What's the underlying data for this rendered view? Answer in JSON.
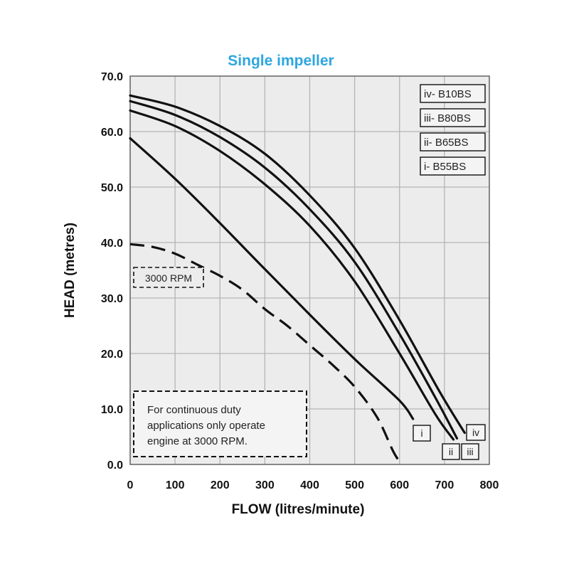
{
  "chart_data": {
    "type": "line",
    "title": "Single impeller",
    "xlabel": "FLOW (litres/minute)",
    "ylabel": "HEAD (metres)",
    "xlim": [
      0,
      800
    ],
    "ylim": [
      0,
      70
    ],
    "x_ticks": [
      "0",
      "100",
      "200",
      "300",
      "400",
      "500",
      "600",
      "700",
      "800"
    ],
    "y_ticks": [
      "0.0",
      "10.0",
      "20.0",
      "30.0",
      "40.0",
      "50.0",
      "60.0",
      "70.0"
    ],
    "grid": true,
    "legend_position": "top-right",
    "legend": [
      "iv- B10BS",
      "iii- B80BS",
      "ii- B65BS",
      "i- B55BS"
    ],
    "series": [
      {
        "name": "i- B55BS",
        "tag": "i",
        "style": "solid",
        "points": [
          [
            0,
            58.8
          ],
          [
            100,
            51.5
          ],
          [
            200,
            43.5
          ],
          [
            300,
            35.2
          ],
          [
            400,
            27
          ],
          [
            500,
            19
          ],
          [
            600,
            11.5
          ],
          [
            630,
            8.2
          ]
        ]
      },
      {
        "name": "ii- B65BS",
        "tag": "ii",
        "style": "solid",
        "points": [
          [
            0,
            63.8
          ],
          [
            100,
            61
          ],
          [
            200,
            56.5
          ],
          [
            300,
            50.5
          ],
          [
            400,
            43
          ],
          [
            500,
            33
          ],
          [
            600,
            20
          ],
          [
            680,
            9
          ],
          [
            720,
            4.5
          ]
        ]
      },
      {
        "name": "iii- B80BS",
        "tag": "iii",
        "style": "solid",
        "points": [
          [
            0,
            65.5
          ],
          [
            100,
            63
          ],
          [
            200,
            59
          ],
          [
            300,
            53.5
          ],
          [
            400,
            46
          ],
          [
            500,
            36.5
          ],
          [
            600,
            23.5
          ],
          [
            680,
            12
          ],
          [
            728,
            4.7
          ]
        ]
      },
      {
        "name": "iv- B10BS",
        "tag": "iv",
        "style": "solid",
        "points": [
          [
            0,
            66.5
          ],
          [
            100,
            64.5
          ],
          [
            200,
            61
          ],
          [
            300,
            56
          ],
          [
            400,
            48.5
          ],
          [
            500,
            39
          ],
          [
            600,
            26
          ],
          [
            690,
            13
          ],
          [
            745,
            5.7
          ]
        ]
      },
      {
        "name": "3000 RPM",
        "tag": "3000 RPM",
        "style": "dashed",
        "points": [
          [
            0,
            39.7
          ],
          [
            50,
            39.2
          ],
          [
            100,
            38
          ],
          [
            150,
            36
          ],
          [
            200,
            34
          ],
          [
            250,
            31.5
          ],
          [
            300,
            28
          ],
          [
            350,
            25
          ],
          [
            400,
            21.5
          ],
          [
            450,
            18
          ],
          [
            500,
            14
          ],
          [
            550,
            8.5
          ],
          [
            585,
            2.5
          ],
          [
            600,
            0.5
          ]
        ]
      }
    ],
    "annotation": {
      "lines": [
        "For continuous duty",
        "applications only operate",
        "engine at 3000 RPM."
      ]
    }
  },
  "colors": {
    "title": "#2ea6e0",
    "line": "#111111",
    "grid": "#b5b5b5",
    "plot_bg": "#ececec"
  }
}
